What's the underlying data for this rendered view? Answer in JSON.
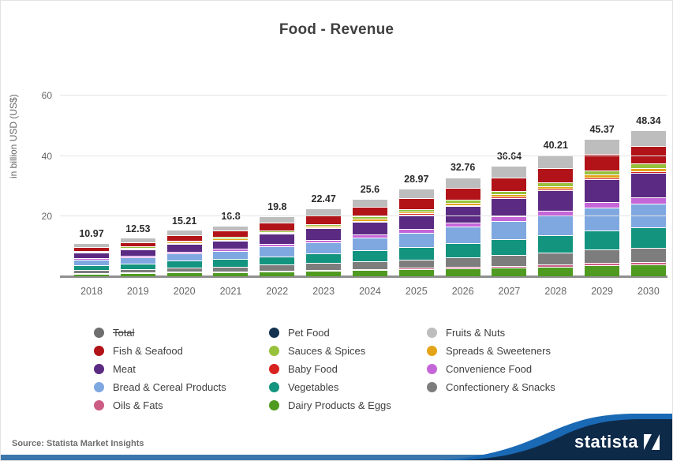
{
  "title": "Food - Revenue",
  "y_axis": {
    "label": "in billion USD (US$)"
  },
  "source": "Source: Statista Market Insights",
  "brand": {
    "logo_text": "statista"
  },
  "colors": {
    "title_text": "#3f3f3f",
    "axis_text": "#666666",
    "gridline": "#e3e3e3",
    "baseline": "#8f8f8f",
    "footer_bar_blue": "#3b77ac",
    "footer_swoosh_blue": "#1a69b4",
    "footer_navy": "#0e2a49"
  },
  "chart_data": {
    "type": "bar",
    "stacked": true,
    "stack_order": "series array order is bottom-to-top",
    "title": "Food - Revenue",
    "ylabel": "in billion USD (US$)",
    "ylim": [
      0,
      60
    ],
    "y_ticks": [
      20,
      40,
      60
    ],
    "grid": true,
    "legend_position": "bottom",
    "categories": [
      "2018",
      "2019",
      "2020",
      "2021",
      "2022",
      "2023",
      "2024",
      "2025",
      "2026",
      "2027",
      "2028",
      "2029",
      "2030"
    ],
    "totals": [
      10.97,
      12.53,
      15.21,
      16.8,
      19.8,
      22.47,
      25.6,
      28.97,
      32.76,
      36.64,
      40.21,
      45.37,
      48.34
    ],
    "totals_display": [
      "10.97",
      "12.53",
      "15.21",
      "16.8",
      "19.8",
      "22.47",
      "25.6",
      "28.97",
      "32.76",
      "36.64",
      "40.21",
      "45.37",
      "48.34"
    ],
    "series": [
      {
        "name": "Dairy Products & Eggs",
        "color": "#4f9a20",
        "values": [
          0.88,
          1.0,
          1.22,
          1.34,
          1.58,
          1.8,
          2.05,
          2.31,
          2.62,
          2.93,
          3.21,
          3.63,
          3.86
        ]
      },
      {
        "name": "Oils & Fats",
        "color": "#cc5c83",
        "values": [
          0.17,
          0.19,
          0.24,
          0.26,
          0.31,
          0.35,
          0.4,
          0.45,
          0.51,
          0.57,
          0.62,
          0.7,
          0.75
        ]
      },
      {
        "name": "Confectionery & Snacks",
        "color": "#7d7d7d",
        "values": [
          1.07,
          1.22,
          1.48,
          1.64,
          1.93,
          2.19,
          2.5,
          2.83,
          3.2,
          3.58,
          3.92,
          4.43,
          4.72
        ]
      },
      {
        "name": "Vegetables",
        "color": "#13947f",
        "values": [
          1.56,
          1.78,
          2.16,
          2.39,
          2.81,
          3.19,
          3.64,
          4.12,
          4.66,
          5.21,
          5.71,
          6.45,
          6.87
        ]
      },
      {
        "name": "Bread & Cereal Products",
        "color": "#7fa8e0",
        "values": [
          1.8,
          2.06,
          2.5,
          2.76,
          3.25,
          3.69,
          4.2,
          4.76,
          5.38,
          6.02,
          6.6,
          7.45,
          7.94
        ]
      },
      {
        "name": "Convenience Food",
        "color": "#c566d8",
        "values": [
          0.43,
          0.49,
          0.59,
          0.65,
          0.77,
          0.87,
          1.0,
          1.13,
          1.27,
          1.43,
          1.56,
          1.76,
          1.88
        ]
      },
      {
        "name": "Meat",
        "color": "#5b2a82",
        "values": [
          1.85,
          2.11,
          2.56,
          2.83,
          3.34,
          3.79,
          4.32,
          4.88,
          5.52,
          6.18,
          6.78,
          7.65,
          8.15
        ]
      },
      {
        "name": "Baby Food",
        "color": "#d8221f",
        "values": [
          0.12,
          0.14,
          0.17,
          0.19,
          0.22,
          0.25,
          0.29,
          0.32,
          0.37,
          0.41,
          0.45,
          0.51,
          0.54
        ]
      },
      {
        "name": "Spreads & Sweeteners",
        "color": "#e3a418",
        "values": [
          0.26,
          0.29,
          0.36,
          0.39,
          0.46,
          0.53,
          0.6,
          0.68,
          0.77,
          0.86,
          0.94,
          1.06,
          1.13
        ]
      },
      {
        "name": "Sauces & Spices",
        "color": "#97c13c",
        "values": [
          0.32,
          0.36,
          0.44,
          0.48,
          0.57,
          0.65,
          0.74,
          0.83,
          0.94,
          1.05,
          1.16,
          1.31,
          1.39
        ]
      },
      {
        "name": "Fish & Seafood",
        "color": "#b11318",
        "values": [
          1.34,
          1.53,
          1.86,
          2.05,
          2.42,
          2.74,
          3.13,
          3.54,
          4.0,
          4.47,
          4.91,
          5.54,
          5.9
        ]
      },
      {
        "name": "Pet Food",
        "color": "#12324f",
        "values": [
          0.01,
          0.01,
          0.01,
          0.01,
          0.01,
          0.02,
          0.02,
          0.02,
          0.02,
          0.02,
          0.03,
          0.03,
          0.03
        ]
      },
      {
        "name": "Fruits & Nuts",
        "color": "#bdbdbd",
        "values": [
          1.17,
          1.33,
          1.62,
          1.79,
          2.11,
          2.39,
          2.73,
          3.09,
          3.49,
          3.9,
          4.28,
          4.83,
          5.15
        ]
      }
    ]
  },
  "legend": {
    "columns": [
      [
        {
          "label": "Total",
          "color": "#6e6e6e",
          "struck": true
        },
        {
          "label": "Fish & Seafood",
          "color": "#b11318",
          "struck": false
        },
        {
          "label": "Meat",
          "color": "#5b2a82",
          "struck": false
        },
        {
          "label": "Bread & Cereal Products",
          "color": "#7fa8e0",
          "struck": false
        },
        {
          "label": "Oils & Fats",
          "color": "#cc5c83",
          "struck": false
        }
      ],
      [
        {
          "label": "Pet Food",
          "color": "#12324f",
          "struck": false
        },
        {
          "label": "Sauces & Spices",
          "color": "#97c13c",
          "struck": false
        },
        {
          "label": "Baby Food",
          "color": "#d8221f",
          "struck": false
        },
        {
          "label": "Vegetables",
          "color": "#13947f",
          "struck": false
        },
        {
          "label": "Dairy Products & Eggs",
          "color": "#4f9a20",
          "struck": false
        }
      ],
      [
        {
          "label": "Fruits & Nuts",
          "color": "#bdbdbd",
          "struck": false
        },
        {
          "label": "Spreads & Sweeteners",
          "color": "#e3a418",
          "struck": false
        },
        {
          "label": "Convenience Food",
          "color": "#c566d8",
          "struck": false
        },
        {
          "label": "Confectionery & Snacks",
          "color": "#7d7d7d",
          "struck": false
        }
      ]
    ]
  }
}
